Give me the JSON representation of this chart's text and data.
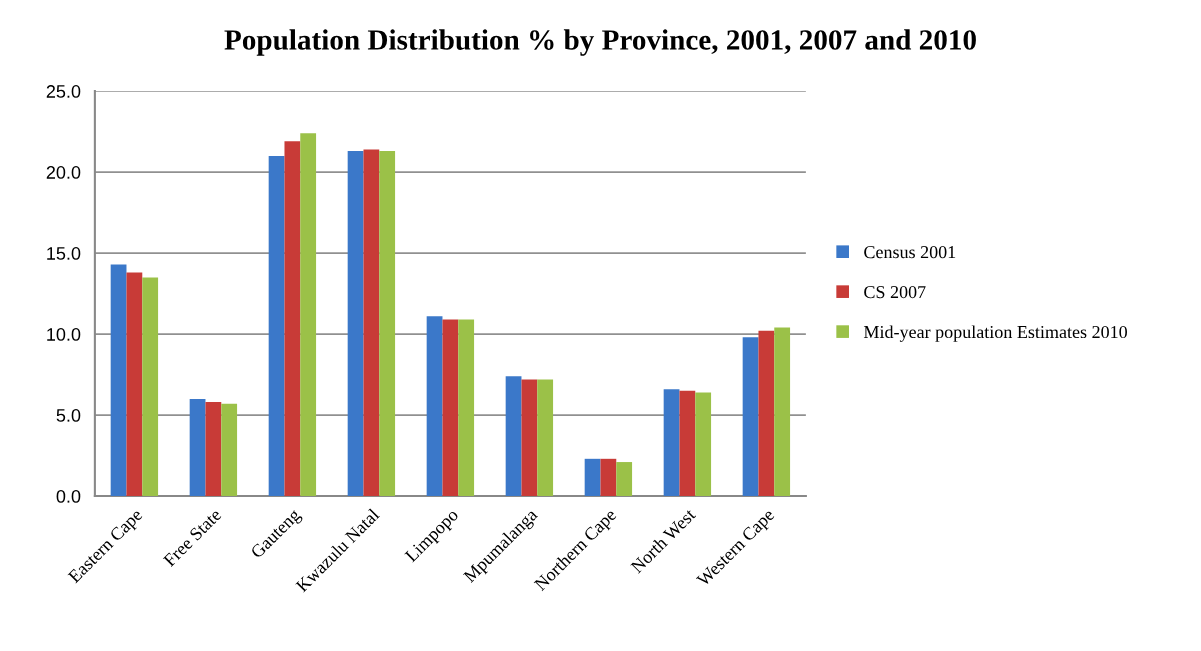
{
  "chart_data": {
    "type": "bar",
    "title": "Population Distribution % by Province, 2001, 2007 and 2010",
    "categories": [
      "Eastern Cape",
      "Free State",
      "Gauteng",
      "Kwazulu Natal",
      "Limpopo",
      "Mpumalanga",
      "Northern Cape",
      "North West",
      "Western Cape"
    ],
    "series": [
      {
        "name": "Census 2001",
        "color": "#3b78c9",
        "values": [
          14.3,
          6.0,
          21.0,
          21.3,
          11.1,
          7.4,
          2.3,
          6.6,
          9.8
        ]
      },
      {
        "name": "CS 2007",
        "color": "#c83b37",
        "values": [
          13.8,
          5.8,
          21.9,
          21.4,
          10.9,
          7.2,
          2.3,
          6.5,
          10.2
        ]
      },
      {
        "name": "Mid-year population Estimates 2010",
        "color": "#9bc148",
        "values": [
          13.5,
          5.7,
          22.4,
          21.3,
          10.9,
          7.2,
          2.1,
          6.4,
          10.4
        ]
      }
    ],
    "ylim": [
      0,
      25
    ],
    "yticks": [
      {
        "value": 0,
        "label": "0.0"
      },
      {
        "value": 5,
        "label": "5.0"
      },
      {
        "value": 10,
        "label": "10.0"
      },
      {
        "value": 15,
        "label": "15.0"
      },
      {
        "value": 20,
        "label": "20.0"
      },
      {
        "value": 25,
        "label": "25.0"
      }
    ],
    "grid": "y",
    "legend": "right"
  }
}
